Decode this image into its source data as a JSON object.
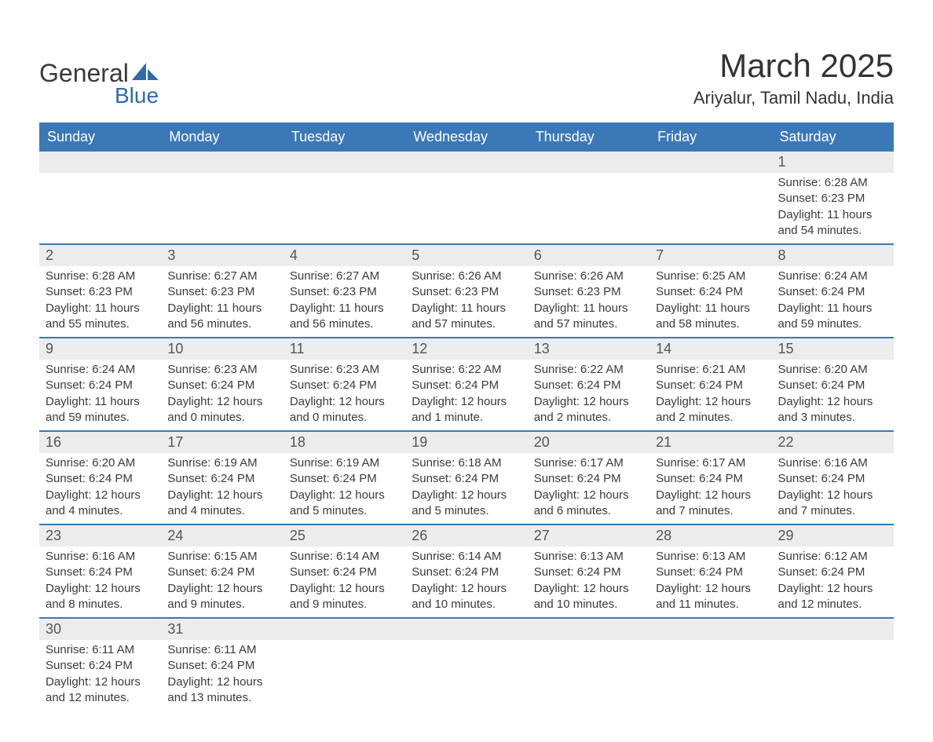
{
  "brand": {
    "general": "General",
    "blue": "Blue",
    "sail_color": "#2f6bab"
  },
  "title": "March 2025",
  "location": "Ariyalur, Tamil Nadu, India",
  "colors": {
    "header_bg": "#3b78b8",
    "header_text": "#ffffff",
    "daynum_bg": "#ececec",
    "text": "#3a3a3a",
    "rule": "#3b78b8"
  },
  "day_names": [
    "Sunday",
    "Monday",
    "Tuesday",
    "Wednesday",
    "Thursday",
    "Friday",
    "Saturday"
  ],
  "weeks": [
    [
      null,
      null,
      null,
      null,
      null,
      null,
      {
        "n": "1",
        "sunrise": "Sunrise: 6:28 AM",
        "sunset": "Sunset: 6:23 PM",
        "dl1": "Daylight: 11 hours",
        "dl2": "and 54 minutes."
      }
    ],
    [
      {
        "n": "2",
        "sunrise": "Sunrise: 6:28 AM",
        "sunset": "Sunset: 6:23 PM",
        "dl1": "Daylight: 11 hours",
        "dl2": "and 55 minutes."
      },
      {
        "n": "3",
        "sunrise": "Sunrise: 6:27 AM",
        "sunset": "Sunset: 6:23 PM",
        "dl1": "Daylight: 11 hours",
        "dl2": "and 56 minutes."
      },
      {
        "n": "4",
        "sunrise": "Sunrise: 6:27 AM",
        "sunset": "Sunset: 6:23 PM",
        "dl1": "Daylight: 11 hours",
        "dl2": "and 56 minutes."
      },
      {
        "n": "5",
        "sunrise": "Sunrise: 6:26 AM",
        "sunset": "Sunset: 6:23 PM",
        "dl1": "Daylight: 11 hours",
        "dl2": "and 57 minutes."
      },
      {
        "n": "6",
        "sunrise": "Sunrise: 6:26 AM",
        "sunset": "Sunset: 6:23 PM",
        "dl1": "Daylight: 11 hours",
        "dl2": "and 57 minutes."
      },
      {
        "n": "7",
        "sunrise": "Sunrise: 6:25 AM",
        "sunset": "Sunset: 6:24 PM",
        "dl1": "Daylight: 11 hours",
        "dl2": "and 58 minutes."
      },
      {
        "n": "8",
        "sunrise": "Sunrise: 6:24 AM",
        "sunset": "Sunset: 6:24 PM",
        "dl1": "Daylight: 11 hours",
        "dl2": "and 59 minutes."
      }
    ],
    [
      {
        "n": "9",
        "sunrise": "Sunrise: 6:24 AM",
        "sunset": "Sunset: 6:24 PM",
        "dl1": "Daylight: 11 hours",
        "dl2": "and 59 minutes."
      },
      {
        "n": "10",
        "sunrise": "Sunrise: 6:23 AM",
        "sunset": "Sunset: 6:24 PM",
        "dl1": "Daylight: 12 hours",
        "dl2": "and 0 minutes."
      },
      {
        "n": "11",
        "sunrise": "Sunrise: 6:23 AM",
        "sunset": "Sunset: 6:24 PM",
        "dl1": "Daylight: 12 hours",
        "dl2": "and 0 minutes."
      },
      {
        "n": "12",
        "sunrise": "Sunrise: 6:22 AM",
        "sunset": "Sunset: 6:24 PM",
        "dl1": "Daylight: 12 hours",
        "dl2": "and 1 minute."
      },
      {
        "n": "13",
        "sunrise": "Sunrise: 6:22 AM",
        "sunset": "Sunset: 6:24 PM",
        "dl1": "Daylight: 12 hours",
        "dl2": "and 2 minutes."
      },
      {
        "n": "14",
        "sunrise": "Sunrise: 6:21 AM",
        "sunset": "Sunset: 6:24 PM",
        "dl1": "Daylight: 12 hours",
        "dl2": "and 2 minutes."
      },
      {
        "n": "15",
        "sunrise": "Sunrise: 6:20 AM",
        "sunset": "Sunset: 6:24 PM",
        "dl1": "Daylight: 12 hours",
        "dl2": "and 3 minutes."
      }
    ],
    [
      {
        "n": "16",
        "sunrise": "Sunrise: 6:20 AM",
        "sunset": "Sunset: 6:24 PM",
        "dl1": "Daylight: 12 hours",
        "dl2": "and 4 minutes."
      },
      {
        "n": "17",
        "sunrise": "Sunrise: 6:19 AM",
        "sunset": "Sunset: 6:24 PM",
        "dl1": "Daylight: 12 hours",
        "dl2": "and 4 minutes."
      },
      {
        "n": "18",
        "sunrise": "Sunrise: 6:19 AM",
        "sunset": "Sunset: 6:24 PM",
        "dl1": "Daylight: 12 hours",
        "dl2": "and 5 minutes."
      },
      {
        "n": "19",
        "sunrise": "Sunrise: 6:18 AM",
        "sunset": "Sunset: 6:24 PM",
        "dl1": "Daylight: 12 hours",
        "dl2": "and 5 minutes."
      },
      {
        "n": "20",
        "sunrise": "Sunrise: 6:17 AM",
        "sunset": "Sunset: 6:24 PM",
        "dl1": "Daylight: 12 hours",
        "dl2": "and 6 minutes."
      },
      {
        "n": "21",
        "sunrise": "Sunrise: 6:17 AM",
        "sunset": "Sunset: 6:24 PM",
        "dl1": "Daylight: 12 hours",
        "dl2": "and 7 minutes."
      },
      {
        "n": "22",
        "sunrise": "Sunrise: 6:16 AM",
        "sunset": "Sunset: 6:24 PM",
        "dl1": "Daylight: 12 hours",
        "dl2": "and 7 minutes."
      }
    ],
    [
      {
        "n": "23",
        "sunrise": "Sunrise: 6:16 AM",
        "sunset": "Sunset: 6:24 PM",
        "dl1": "Daylight: 12 hours",
        "dl2": "and 8 minutes."
      },
      {
        "n": "24",
        "sunrise": "Sunrise: 6:15 AM",
        "sunset": "Sunset: 6:24 PM",
        "dl1": "Daylight: 12 hours",
        "dl2": "and 9 minutes."
      },
      {
        "n": "25",
        "sunrise": "Sunrise: 6:14 AM",
        "sunset": "Sunset: 6:24 PM",
        "dl1": "Daylight: 12 hours",
        "dl2": "and 9 minutes."
      },
      {
        "n": "26",
        "sunrise": "Sunrise: 6:14 AM",
        "sunset": "Sunset: 6:24 PM",
        "dl1": "Daylight: 12 hours",
        "dl2": "and 10 minutes."
      },
      {
        "n": "27",
        "sunrise": "Sunrise: 6:13 AM",
        "sunset": "Sunset: 6:24 PM",
        "dl1": "Daylight: 12 hours",
        "dl2": "and 10 minutes."
      },
      {
        "n": "28",
        "sunrise": "Sunrise: 6:13 AM",
        "sunset": "Sunset: 6:24 PM",
        "dl1": "Daylight: 12 hours",
        "dl2": "and 11 minutes."
      },
      {
        "n": "29",
        "sunrise": "Sunrise: 6:12 AM",
        "sunset": "Sunset: 6:24 PM",
        "dl1": "Daylight: 12 hours",
        "dl2": "and 12 minutes."
      }
    ],
    [
      {
        "n": "30",
        "sunrise": "Sunrise: 6:11 AM",
        "sunset": "Sunset: 6:24 PM",
        "dl1": "Daylight: 12 hours",
        "dl2": "and 12 minutes."
      },
      {
        "n": "31",
        "sunrise": "Sunrise: 6:11 AM",
        "sunset": "Sunset: 6:24 PM",
        "dl1": "Daylight: 12 hours",
        "dl2": "and 13 minutes."
      },
      null,
      null,
      null,
      null,
      null
    ]
  ]
}
